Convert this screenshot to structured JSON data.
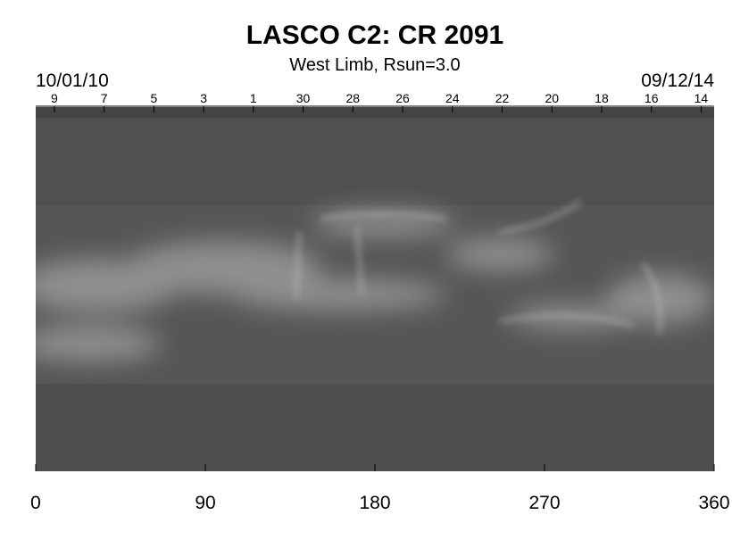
{
  "chart_data": {
    "type": "synoptic-map",
    "title": "LASCO C2: CR 2091",
    "subtitle": "West Limb, Rsun=3.0",
    "start_date": "10/01/10",
    "end_date": "09/12/14",
    "xlim": [
      0,
      360
    ],
    "xticks": [
      0,
      90,
      180,
      270,
      360
    ],
    "top_ticks": [
      {
        "value": 9.9,
        "label": "9"
      },
      {
        "value": 36.3,
        "label": "7"
      },
      {
        "value": 62.7,
        "label": "5"
      },
      {
        "value": 89.1,
        "label": "3"
      },
      {
        "value": 115.5,
        "label": "1"
      },
      {
        "value": 141.9,
        "label": "30"
      },
      {
        "value": 168.3,
        "label": "28"
      },
      {
        "value": 194.7,
        "label": "26"
      },
      {
        "value": 221.1,
        "label": "24"
      },
      {
        "value": 247.5,
        "label": "22"
      },
      {
        "value": 273.9,
        "label": "20"
      },
      {
        "value": 300.3,
        "label": "18"
      },
      {
        "value": 326.7,
        "label": "16"
      },
      {
        "value": 353.1,
        "label": "14"
      }
    ]
  }
}
